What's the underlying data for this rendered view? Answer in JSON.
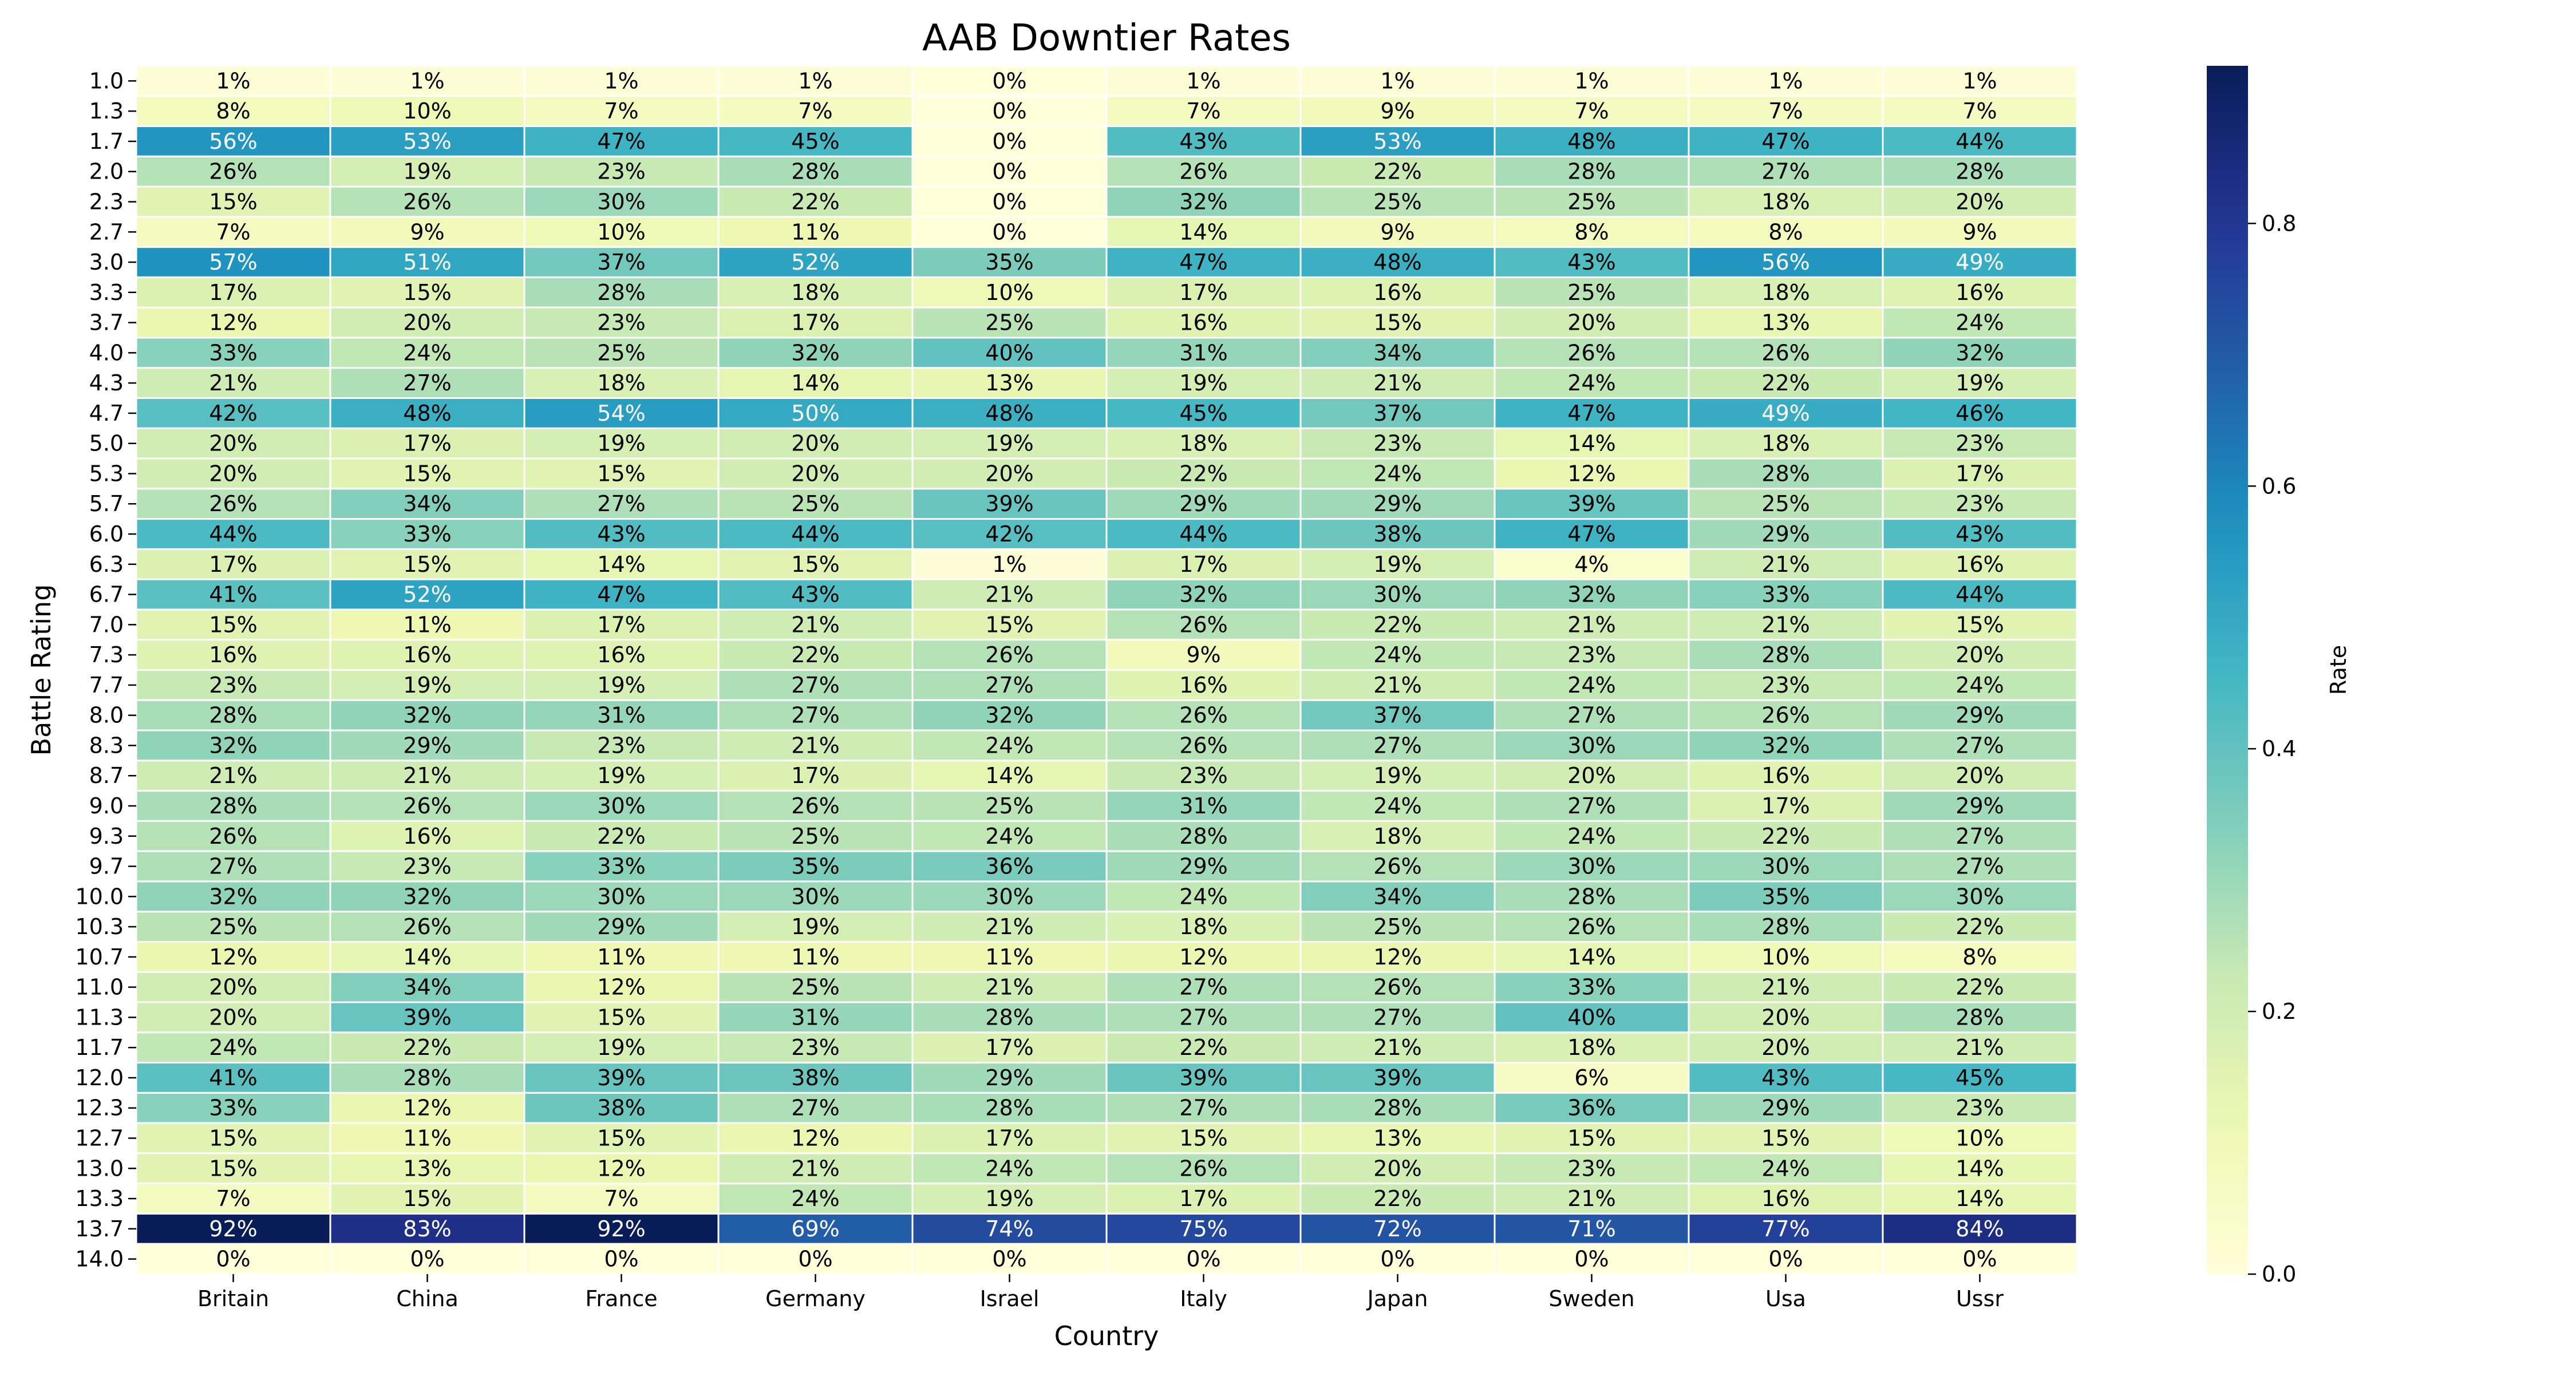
{
  "chart_data": {
    "type": "heatmap",
    "title": "AAB Downtier Rates",
    "xlabel": "Country",
    "ylabel": "Battle Rating",
    "colorbar_label": "Rate",
    "colormap": "YlGnBu",
    "value_range": [
      0,
      0.92
    ],
    "colorbar_ticks": [
      "0.0",
      "0.2",
      "0.4",
      "0.6",
      "0.8"
    ],
    "colorbar_tick_values": [
      0,
      0.2,
      0.4,
      0.6,
      0.8
    ],
    "columns": [
      "Britain",
      "China",
      "France",
      "Germany",
      "Israel",
      "Italy",
      "Japan",
      "Sweden",
      "Usa",
      "Ussr"
    ],
    "rows": [
      "1.0",
      "1.3",
      "1.7",
      "2.0",
      "2.3",
      "2.7",
      "3.0",
      "3.3",
      "3.7",
      "4.0",
      "4.3",
      "4.7",
      "5.0",
      "5.3",
      "5.7",
      "6.0",
      "6.3",
      "6.7",
      "7.0",
      "7.3",
      "7.7",
      "8.0",
      "8.3",
      "8.7",
      "9.0",
      "9.3",
      "9.7",
      "10.0",
      "10.3",
      "10.7",
      "11.0",
      "11.3",
      "11.7",
      "12.0",
      "12.3",
      "12.7",
      "13.0",
      "13.3",
      "13.7",
      "14.0"
    ],
    "values": [
      [
        1,
        1,
        1,
        1,
        0,
        1,
        1,
        1,
        1,
        1
      ],
      [
        8,
        10,
        7,
        7,
        0,
        7,
        9,
        7,
        7,
        7
      ],
      [
        56,
        53,
        47,
        45,
        0,
        43,
        53,
        48,
        47,
        44
      ],
      [
        26,
        19,
        23,
        28,
        0,
        26,
        22,
        28,
        27,
        28
      ],
      [
        15,
        26,
        30,
        22,
        0,
        32,
        25,
        25,
        18,
        20
      ],
      [
        7,
        9,
        10,
        11,
        0,
        14,
        9,
        8,
        8,
        9
      ],
      [
        57,
        51,
        37,
        52,
        35,
        47,
        48,
        43,
        56,
        49
      ],
      [
        17,
        15,
        28,
        18,
        10,
        17,
        16,
        25,
        18,
        16
      ],
      [
        12,
        20,
        23,
        17,
        25,
        16,
        15,
        20,
        13,
        24
      ],
      [
        33,
        24,
        25,
        32,
        40,
        31,
        34,
        26,
        26,
        32
      ],
      [
        21,
        27,
        18,
        14,
        13,
        19,
        21,
        24,
        22,
        19
      ],
      [
        42,
        48,
        54,
        50,
        48,
        45,
        37,
        47,
        49,
        46
      ],
      [
        20,
        17,
        19,
        20,
        19,
        18,
        23,
        14,
        18,
        23
      ],
      [
        20,
        15,
        15,
        20,
        20,
        22,
        24,
        12,
        28,
        17
      ],
      [
        26,
        34,
        27,
        25,
        39,
        29,
        29,
        39,
        25,
        23
      ],
      [
        44,
        33,
        43,
        44,
        42,
        44,
        38,
        47,
        29,
        43
      ],
      [
        17,
        15,
        14,
        15,
        1,
        17,
        19,
        4,
        21,
        16
      ],
      [
        41,
        52,
        47,
        43,
        21,
        32,
        30,
        32,
        33,
        44
      ],
      [
        15,
        11,
        17,
        21,
        15,
        26,
        22,
        21,
        21,
        15
      ],
      [
        16,
        16,
        16,
        22,
        26,
        9,
        24,
        23,
        28,
        20
      ],
      [
        23,
        19,
        19,
        27,
        27,
        16,
        21,
        24,
        23,
        24
      ],
      [
        28,
        32,
        31,
        27,
        32,
        26,
        37,
        27,
        26,
        29
      ],
      [
        32,
        29,
        23,
        21,
        24,
        26,
        27,
        30,
        32,
        27
      ],
      [
        21,
        21,
        19,
        17,
        14,
        23,
        19,
        20,
        16,
        20
      ],
      [
        28,
        26,
        30,
        26,
        25,
        31,
        24,
        27,
        17,
        29
      ],
      [
        26,
        16,
        22,
        25,
        24,
        28,
        18,
        24,
        22,
        27
      ],
      [
        27,
        23,
        33,
        35,
        36,
        29,
        26,
        30,
        30,
        27
      ],
      [
        32,
        32,
        30,
        30,
        30,
        24,
        34,
        28,
        35,
        30
      ],
      [
        25,
        26,
        29,
        19,
        21,
        18,
        25,
        26,
        28,
        22
      ],
      [
        12,
        14,
        11,
        11,
        11,
        12,
        12,
        14,
        10,
        8
      ],
      [
        20,
        34,
        12,
        25,
        21,
        27,
        26,
        33,
        21,
        22
      ],
      [
        20,
        39,
        15,
        31,
        28,
        27,
        27,
        40,
        20,
        28
      ],
      [
        24,
        22,
        19,
        23,
        17,
        22,
        21,
        18,
        20,
        21
      ],
      [
        41,
        28,
        39,
        38,
        29,
        39,
        39,
        6,
        43,
        45
      ],
      [
        33,
        12,
        38,
        27,
        28,
        27,
        28,
        36,
        29,
        23
      ],
      [
        15,
        11,
        15,
        12,
        17,
        15,
        13,
        15,
        15,
        10
      ],
      [
        15,
        13,
        12,
        21,
        24,
        26,
        20,
        23,
        24,
        14
      ],
      [
        7,
        15,
        7,
        24,
        19,
        17,
        22,
        21,
        16,
        14
      ],
      [
        92,
        83,
        92,
        69,
        74,
        75,
        72,
        71,
        77,
        84
      ],
      [
        0,
        0,
        0,
        0,
        0,
        0,
        0,
        0,
        0,
        0
      ]
    ],
    "value_suffix": "%"
  }
}
